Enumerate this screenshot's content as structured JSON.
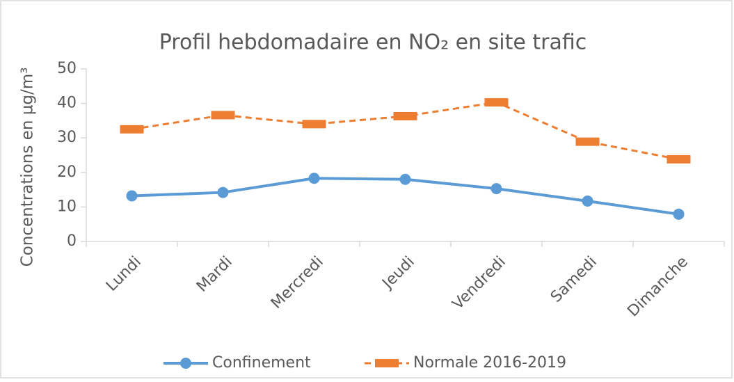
{
  "chart_data": {
    "type": "line",
    "title": "Profil hebdomadaire en NO₂ en site trafic",
    "y_label": "Concentrations en µg/m³",
    "categories": [
      "Lundi",
      "Mardi",
      "Mercredi",
      "Jeudi",
      "Vendredi",
      "Samedi",
      "Dimanche"
    ],
    "series": [
      {
        "name": "Confinement",
        "color": "#5b9bd5",
        "values": [
          13.2,
          14.2,
          18.3,
          18.0,
          15.3,
          11.7,
          7.9
        ]
      },
      {
        "name": "Normale 2016-2019",
        "color": "#ed7d31",
        "values": [
          32.5,
          36.6,
          34.0,
          36.3,
          40.3,
          28.9,
          23.8
        ]
      }
    ],
    "ylim": [
      0,
      50
    ],
    "yticks": [
      0,
      10,
      20,
      30,
      40,
      50
    ],
    "grid": false,
    "legend": "bottom"
  }
}
